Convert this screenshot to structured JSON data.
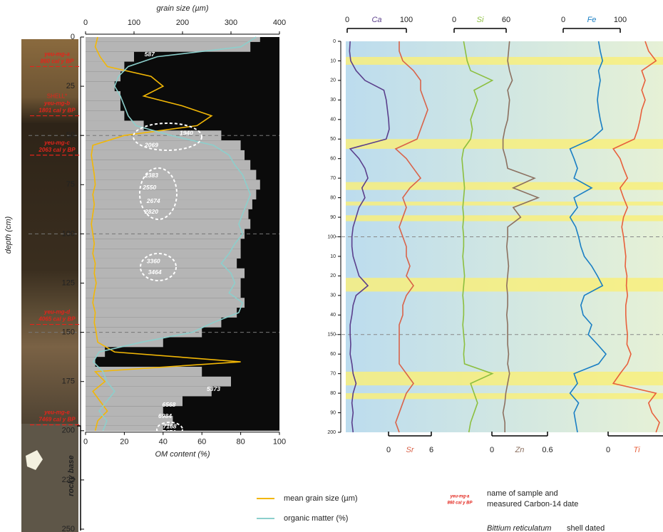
{
  "chart_data": [
    {
      "type": "line",
      "ylabel": "depth (cm)",
      "ylim": [
        0,
        250
      ],
      "yticks": [
        0,
        25,
        50,
        75,
        100,
        125,
        150,
        175,
        200,
        225,
        250
      ],
      "xlabel": "grain size (µm)",
      "xlim": [
        0,
        400
      ],
      "xticks": [
        0,
        100,
        200,
        300,
        400
      ],
      "x2label": "OM content (%)",
      "x2lim": [
        0,
        100
      ],
      "x2ticks": [
        0,
        20,
        40,
        60,
        80,
        100
      ],
      "depth": [
        0,
        5,
        10,
        15,
        20,
        25,
        30,
        35,
        40,
        45,
        50,
        55,
        60,
        65,
        70,
        75,
        80,
        85,
        90,
        95,
        100,
        105,
        110,
        115,
        120,
        125,
        130,
        135,
        140,
        145,
        150,
        155,
        160,
        165,
        170,
        175,
        180,
        185,
        190,
        195,
        200
      ],
      "bars": {
        "color": "#b5b5b5",
        "values": [
          90,
          85,
          25,
          20,
          18,
          15,
          18,
          18,
          20,
          30,
          70,
          80,
          82,
          85,
          88,
          90,
          88,
          86,
          84,
          85,
          82,
          80,
          80,
          78,
          82,
          80,
          80,
          82,
          78,
          70,
          60,
          40,
          10,
          5,
          60,
          75,
          65,
          50,
          40,
          45,
          40
        ]
      },
      "series": [
        {
          "name": "mean grain size (µm)",
          "color": "#f2b705",
          "axis": "x",
          "values": [
            25,
            20,
            30,
            45,
            135,
            160,
            120,
            200,
            260,
            230,
            80,
            15,
            12,
            15,
            18,
            20,
            15,
            18,
            15,
            12,
            15,
            18,
            15,
            20,
            18,
            22,
            18,
            15,
            20,
            18,
            22,
            25,
            60,
            320,
            20,
            40,
            15,
            30,
            45,
            25,
            20
          ]
        },
        {
          "name": "organic matter (%)",
          "color": "#8ccfcc",
          "axis": "x2",
          "values": [
            88,
            80,
            37,
            22,
            17,
            15,
            18,
            20,
            22,
            26,
            44,
            66,
            74,
            77,
            81,
            83,
            85,
            83,
            81,
            79,
            81,
            77,
            74,
            70,
            75,
            77,
            74,
            81,
            79,
            66,
            55,
            29,
            7,
            4,
            9,
            11,
            15,
            11,
            7,
            11,
            9
          ]
        }
      ],
      "dashed_depths": [
        50,
        100,
        150
      ],
      "samples": [
        {
          "name": "yeu-mg-a",
          "date": "860 cal y BP",
          "depth": 15
        },
        {
          "note": "SHELL*",
          "name": "yeu-mg-b",
          "date": "1801 cal y BP",
          "depth": 40
        },
        {
          "name": "yeu-mg-c",
          "date": "2063 cal y BP",
          "depth": 60
        },
        {
          "name": "yeu-mg-d",
          "date": "4065 cal y BP",
          "depth": 146
        },
        {
          "name": "yeu-mg-e",
          "date": "7469 cal y BP",
          "depth": 197
        }
      ],
      "ages": {
        "values": [
          587,
          1940,
          2069,
          2383,
          2550,
          2674,
          2820,
          3360,
          3464,
          5373,
          6568,
          6984,
          7168,
          7474
        ],
        "depths": [
          9,
          49,
          55,
          70.5,
          76.7,
          83.5,
          89,
          114,
          119.7,
          179,
          187,
          192.8,
          198,
          201
        ],
        "x": [
          33,
          52,
          34,
          34,
          33,
          35,
          34,
          35,
          35.7,
          66,
          43,
          41,
          43.4,
          43
        ]
      },
      "base_label": "rocky base"
    },
    {
      "type": "line",
      "ylim": [
        0,
        200
      ],
      "yticks": [
        0,
        10,
        20,
        30,
        40,
        50,
        60,
        70,
        80,
        90,
        100,
        {
          "value": 110,
          "label": "10"
        },
        {
          "value": 120,
          "label": "20"
        },
        {
          "value": 130,
          "label": "30"
        },
        {
          "value": 140,
          "label": "40"
        },
        150,
        {
          "value": 160,
          "label": "60"
        },
        {
          "value": 170,
          "label": "70"
        },
        {
          "value": 180,
          "label": "80"
        },
        {
          "value": 190,
          "label": "90"
        },
        200
      ],
      "depth": [
        0,
        5,
        10,
        15,
        20,
        25,
        30,
        35,
        40,
        45,
        50,
        55,
        60,
        65,
        70,
        75,
        80,
        85,
        90,
        95,
        100,
        105,
        110,
        115,
        120,
        125,
        130,
        135,
        140,
        145,
        150,
        155,
        160,
        165,
        170,
        175,
        180,
        185,
        190,
        195,
        200
      ],
      "highlights": [
        [
          8,
          12
        ],
        [
          50,
          55
        ],
        [
          72,
          76
        ],
        [
          82,
          84
        ],
        [
          89,
          92
        ],
        [
          121,
          128
        ],
        [
          169,
          176
        ],
        [
          180,
          183
        ]
      ],
      "dashed_depths": [
        100,
        150
      ],
      "series": [
        {
          "name": "Ca",
          "color": "#5b3f8c",
          "axis": "top",
          "xlim": [
            0,
            100
          ],
          "xticks": [
            0,
            100
          ],
          "values": [
            5,
            4,
            6,
            15,
            30,
            62,
            66,
            68,
            70,
            71,
            66,
            5,
            20,
            30,
            35,
            25,
            30,
            20,
            15,
            10,
            8,
            8,
            10,
            15,
            20,
            35,
            15,
            10,
            8,
            5,
            5,
            6,
            5,
            8,
            10,
            15,
            10,
            8,
            10,
            8,
            10
          ]
        },
        {
          "name": "Sr",
          "color": "#d9634a",
          "axis": "bottom",
          "xlim": [
            0,
            6
          ],
          "xticks": [
            0,
            6
          ],
          "values": [
            1.5,
            1.5,
            2,
            3.5,
            4.5,
            4.5,
            5,
            5.5,
            5,
            4.5,
            4,
            1,
            2.5,
            3.5,
            4.5,
            3,
            2,
            2.5,
            2,
            1.5,
            2,
            2.5,
            2.5,
            3,
            2.5,
            3.5,
            2.5,
            2,
            2,
            1.5,
            1.5,
            1.5,
            1.5,
            1.5,
            2.5,
            3.5,
            2.5,
            2,
            1.5,
            1,
            1.5
          ]
        },
        {
          "name": "Si",
          "color": "#8cbf3f",
          "axis": "top",
          "xlim": [
            0,
            60
          ],
          "xticks": [
            0,
            60
          ],
          "values": [
            11,
            13,
            15,
            19,
            44,
            23,
            27,
            23,
            19,
            21,
            19,
            11,
            9,
            10,
            11,
            12,
            11,
            10,
            11,
            10,
            11,
            11,
            10,
            11,
            12,
            11,
            10,
            11,
            11,
            10,
            11,
            12,
            11,
            12,
            44,
            19,
            23,
            27,
            23,
            19,
            17
          ]
        },
        {
          "name": "Zn",
          "color": "#8c7060",
          "axis": "bottom",
          "xlim": [
            0,
            0.6
          ],
          "xticks": [
            0,
            0.6
          ],
          "values": [
            0.19,
            0.18,
            0.17,
            0.19,
            0.22,
            0.17,
            0.19,
            0.18,
            0.17,
            0.14,
            0.12,
            0.12,
            0.15,
            0.17,
            0.46,
            0.23,
            0.5,
            0.23,
            0.31,
            0.17,
            0.17,
            0.16,
            0.17,
            0.18,
            0.17,
            0.16,
            0.17,
            0.17,
            0.16,
            0.17,
            0.17,
            0.17,
            0.18,
            0.17,
            0.19,
            0.17,
            0.15,
            0.14,
            0.12,
            0.14,
            0.14
          ]
        },
        {
          "name": "Fe",
          "color": "#1a7fc4",
          "axis": "top",
          "xlim": [
            0,
            100
          ],
          "xticks": [
            0,
            100
          ],
          "values": [
            62,
            65,
            69,
            62,
            65,
            62,
            60,
            62,
            65,
            69,
            50,
            12,
            19,
            25,
            19,
            50,
            19,
            25,
            12,
            22,
            27,
            31,
            37,
            50,
            60,
            69,
            37,
            31,
            35,
            50,
            44,
            60,
            75,
            62,
            19,
            25,
            12,
            27,
            19,
            22,
            25
          ]
        },
        {
          "name": "Ti",
          "color": "#e8603c",
          "axis": "bottom",
          "xlim": [
            0,
            100
          ],
          "xticks": [
            0
          ],
          "values": [
            65,
            71,
            84,
            59,
            65,
            59,
            65,
            59,
            56,
            52,
            46,
            9,
            21,
            27,
            34,
            21,
            27,
            34,
            27,
            24,
            27,
            29,
            31,
            30,
            33,
            32,
            34,
            31,
            31,
            32,
            34,
            33,
            40,
            34,
            21,
            9,
            84,
            71,
            77,
            90,
            84
          ]
        }
      ]
    }
  ],
  "legend": {
    "note_sample": "yeu-mg-a",
    "note_date": "860 cal y BP",
    "note_text": [
      "name of sample and",
      "measured Carbon-14 date"
    ],
    "shell_species": "Bittium reticulatum",
    "shell_text": "shell dated"
  }
}
